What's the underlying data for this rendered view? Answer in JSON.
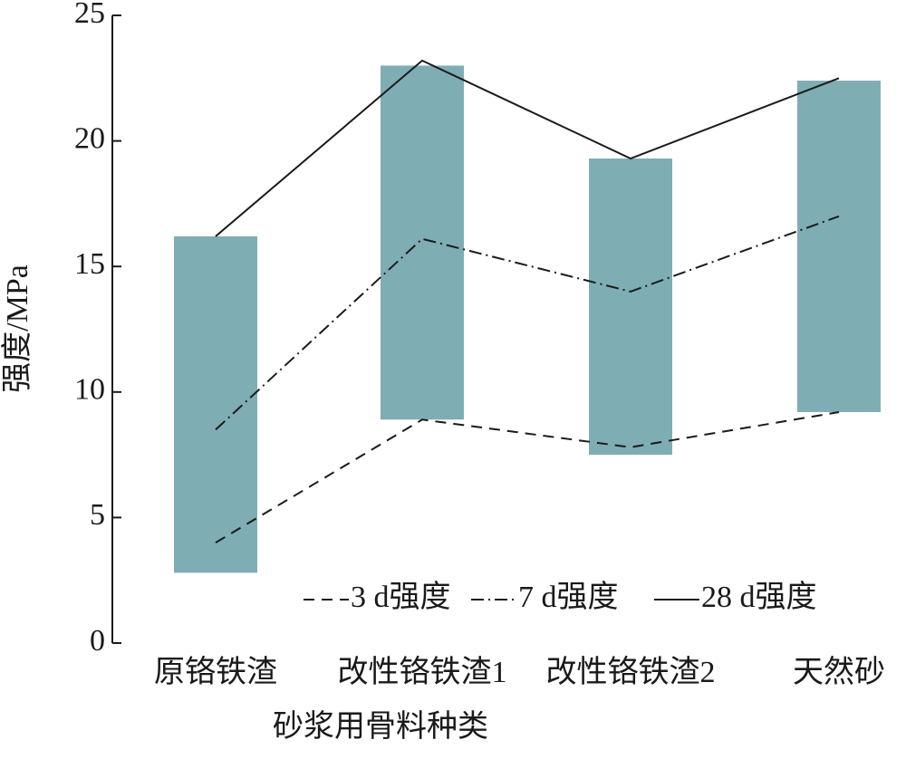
{
  "chart_data": {
    "type": "range-bar-line",
    "xlabel": "砂浆用骨料种类",
    "ylabel": "强度/MPa",
    "categories": [
      "原铬铁渣",
      "改性铬铁渣1",
      "改性铬铁渣2",
      "天然砂"
    ],
    "bars": {
      "color": "#7fadb4",
      "low": [
        2.8,
        8.9,
        7.5,
        9.2
      ],
      "high": [
        16.2,
        23.0,
        19.3,
        22.4
      ]
    },
    "series": [
      {
        "name": "3 d强度",
        "color": "#1a1a1a",
        "dash": "dashed",
        "values": [
          4.0,
          8.9,
          7.8,
          9.2
        ]
      },
      {
        "name": "7 d强度",
        "color": "#1a1a1a",
        "dash": "dashdot",
        "values": [
          8.5,
          16.1,
          14.0,
          17.0
        ]
      },
      {
        "name": "28 d强度",
        "color": "#1a1a1a",
        "dash": "solid",
        "values": [
          16.2,
          23.2,
          19.3,
          22.5
        ]
      }
    ],
    "ylim": [
      0,
      25
    ],
    "yticks": [
      0,
      5,
      10,
      15,
      20,
      25
    ],
    "legend": "lower-right"
  }
}
